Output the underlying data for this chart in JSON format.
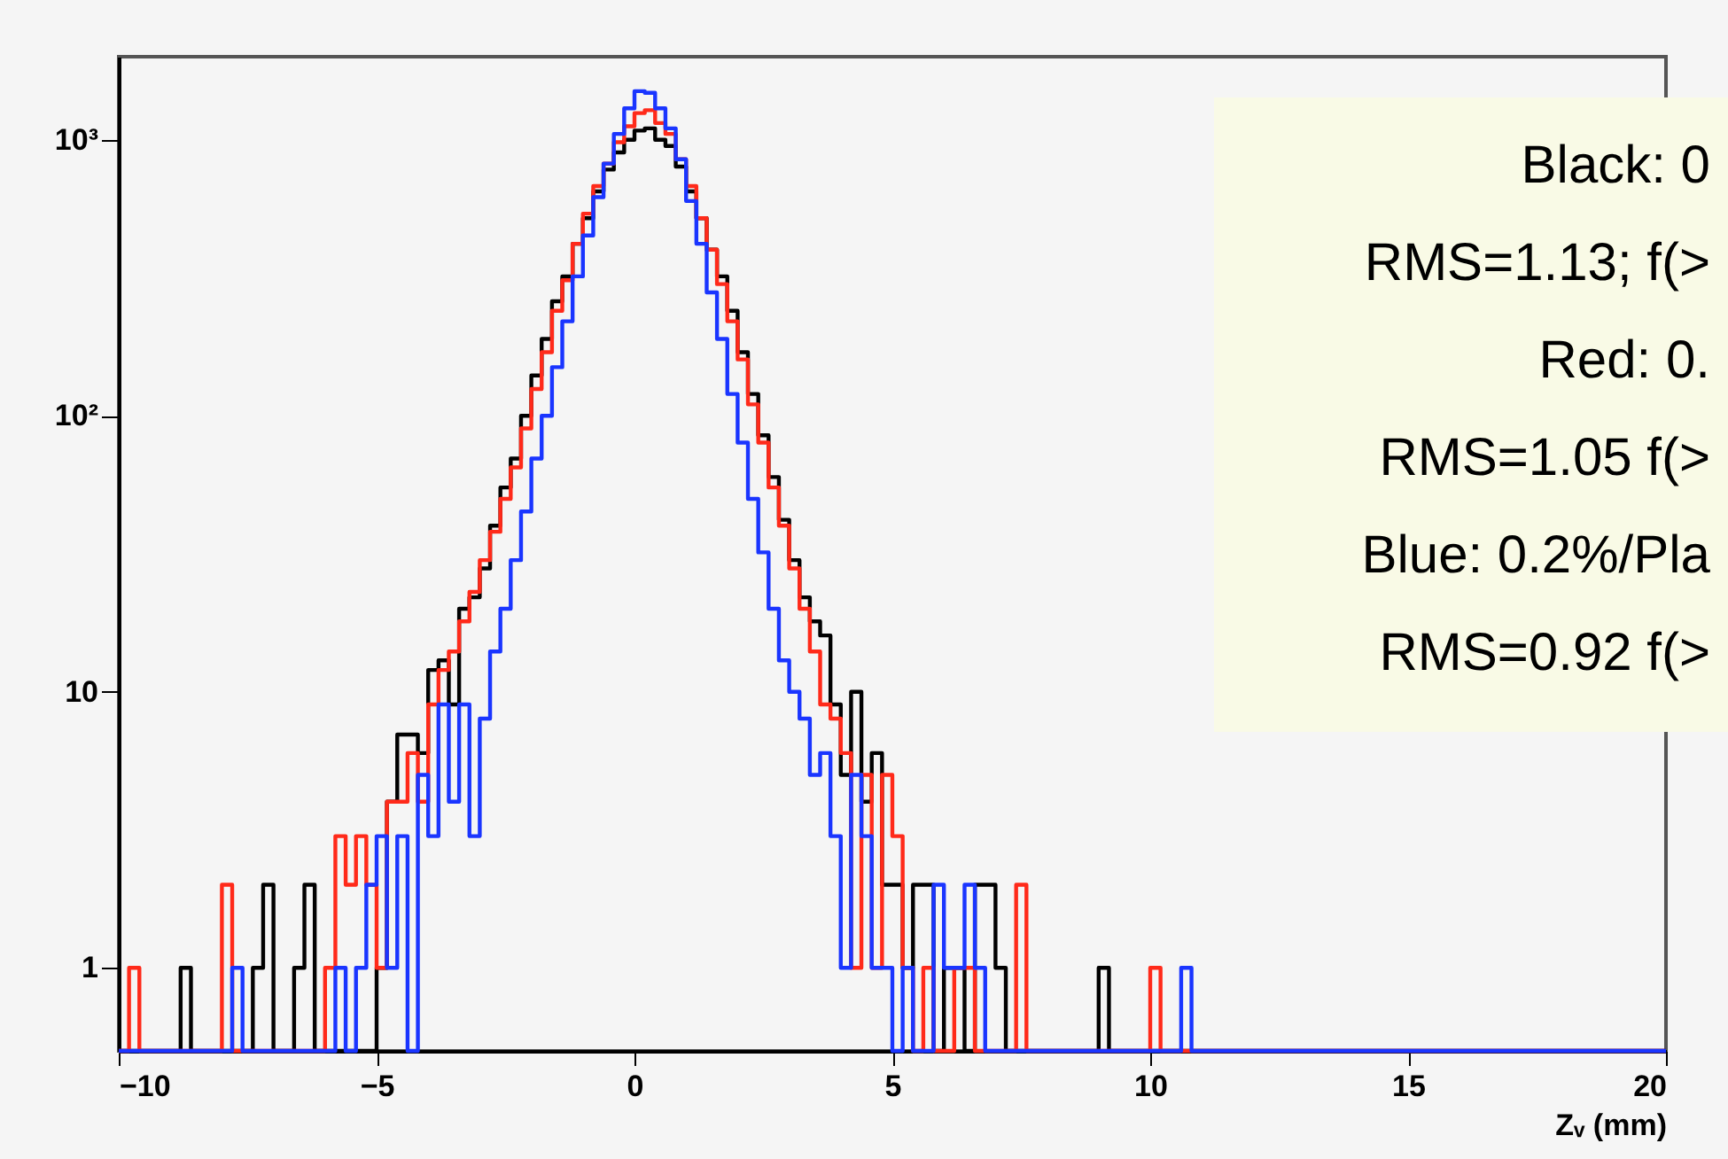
{
  "chart_data": {
    "type": "histogram",
    "bins": [
      -10,
      -9.8,
      -9.6,
      -9.4,
      -9.2,
      -9,
      -8.8,
      -8.6,
      -8.4,
      -8.2,
      -8,
      -7.8,
      -7.6,
      -7.4,
      -7.2,
      -7,
      -6.8,
      -6.6,
      -6.4,
      -6.2,
      -6,
      -5.8,
      -5.6,
      -5.4,
      -5.2,
      -5,
      -4.8,
      -4.6,
      -4.4,
      -4.2,
      -4,
      -3.8,
      -3.6,
      -3.4,
      -3.2,
      -3,
      -2.8,
      -2.6,
      -2.4,
      -2.2,
      -2,
      -1.8,
      -1.6,
      -1.4,
      -1.2,
      -1,
      -0.8,
      -0.6,
      -0.4,
      -0.2,
      0,
      0.2,
      0.4,
      0.6,
      0.8,
      1,
      1.2,
      1.4,
      1.6,
      1.8,
      2,
      2.2,
      2.4,
      2.6,
      2.8,
      3,
      3.2,
      3.4,
      3.6,
      3.8,
      4,
      4.2,
      4.4,
      4.6,
      4.8,
      5,
      5.2,
      5.4,
      5.6,
      5.8,
      6,
      6.2,
      6.4,
      6.6,
      6.8,
      7,
      7.2,
      7.4,
      7.6,
      7.8,
      8,
      8.2,
      8.4,
      8.6,
      8.8,
      9,
      9.2,
      9.4,
      9.6,
      9.8,
      10,
      10.2,
      10.4,
      10.6,
      10.8,
      11,
      11.2,
      11.4,
      11.6,
      11.8,
      12,
      12.2,
      12.4,
      12.6,
      12.8,
      13,
      13.2,
      13.4,
      13.6,
      13.8,
      14,
      14.2,
      14.4,
      14.6,
      14.8,
      15,
      15.2,
      15.4,
      15.6,
      15.8,
      16,
      16.2,
      16.4,
      16.6,
      16.8,
      17,
      17.2,
      17.4,
      17.6,
      17.8,
      18,
      18.2,
      18.4,
      18.6,
      18.8,
      19,
      19.2,
      19.4,
      19.6,
      19.8,
      20
    ],
    "series": [
      {
        "color": "#000000",
        "values": [
          null,
          null,
          null,
          null,
          null,
          null,
          1,
          null,
          null,
          null,
          null,
          null,
          null,
          1,
          2,
          null,
          null,
          1,
          2,
          null,
          null,
          null,
          null,
          null,
          null,
          1,
          4,
          7,
          7,
          6,
          12,
          13,
          9,
          20,
          22,
          28,
          40,
          55,
          70,
          100,
          140,
          190,
          260,
          320,
          420,
          520,
          650,
          780,
          900,
          1000,
          1080,
          1100,
          1000,
          950,
          800,
          650,
          520,
          400,
          320,
          240,
          170,
          120,
          85,
          60,
          42,
          30,
          22,
          18,
          16,
          9,
          5,
          10,
          4,
          6,
          2,
          2,
          1,
          2,
          2,
          null,
          1,
          1,
          null,
          2,
          2,
          1,
          null,
          null,
          null,
          null,
          null,
          null,
          null,
          null,
          null,
          1,
          null,
          null,
          null,
          null,
          null,
          null,
          null,
          null,
          null,
          null,
          null,
          null,
          null,
          null,
          null,
          null,
          null,
          null,
          null,
          null,
          null,
          null,
          null,
          null,
          null,
          null,
          null,
          null,
          null,
          null,
          null,
          null,
          null,
          null,
          null,
          null,
          null,
          null,
          null,
          null,
          null,
          null,
          null,
          null,
          null,
          null,
          null,
          null,
          null,
          null,
          null,
          null,
          null,
          null
        ]
      },
      {
        "color": "#ff2a1a",
        "values": [
          null,
          1,
          null,
          null,
          null,
          null,
          null,
          null,
          null,
          null,
          2,
          null,
          null,
          null,
          null,
          null,
          null,
          null,
          null,
          null,
          1,
          3,
          2,
          3,
          2,
          1,
          4,
          4,
          6,
          4,
          9,
          12,
          14,
          18,
          23,
          30,
          38,
          50,
          65,
          90,
          125,
          170,
          240,
          310,
          420,
          540,
          680,
          820,
          980,
          1120,
          1250,
          1280,
          1150,
          1050,
          850,
          680,
          520,
          400,
          300,
          220,
          160,
          110,
          80,
          55,
          40,
          28,
          20,
          14,
          9,
          8,
          6,
          1,
          5,
          1,
          5,
          3,
          1,
          null,
          1,
          null,
          null,
          1,
          1,
          null,
          null,
          null,
          null,
          2,
          null,
          null,
          null,
          null,
          null,
          null,
          null,
          null,
          null,
          null,
          null,
          null,
          1,
          null,
          null,
          null,
          null,
          null,
          null,
          null,
          null,
          null,
          null,
          null,
          null,
          null,
          null,
          null,
          null,
          null,
          null,
          null,
          null,
          null,
          null,
          null,
          null,
          null,
          null,
          null,
          null,
          null,
          null,
          null,
          null,
          null,
          null,
          null,
          null,
          null,
          null,
          null,
          null,
          null,
          null,
          null,
          null,
          null,
          null,
          null,
          null,
          null
        ]
      },
      {
        "color": "#1a35ff",
        "values": [
          null,
          null,
          null,
          null,
          null,
          null,
          null,
          null,
          null,
          null,
          null,
          1,
          null,
          null,
          null,
          null,
          null,
          null,
          null,
          null,
          null,
          1,
          null,
          1,
          2,
          3,
          1,
          3,
          null,
          5,
          3,
          9,
          4,
          9,
          3,
          8,
          14,
          20,
          30,
          45,
          70,
          100,
          150,
          220,
          320,
          450,
          620,
          820,
          1050,
          1300,
          1500,
          1480,
          1300,
          1100,
          850,
          600,
          420,
          280,
          190,
          120,
          80,
          50,
          32,
          20,
          13,
          10,
          8,
          5,
          6,
          3,
          1,
          5,
          3,
          1,
          1,
          null,
          1,
          null,
          null,
          2,
          1,
          1,
          2,
          1,
          null,
          null,
          null,
          null,
          null,
          null,
          null,
          null,
          null,
          null,
          null,
          null,
          null,
          null,
          null,
          null,
          null,
          null,
          null,
          1,
          null,
          null,
          null,
          null,
          null,
          null,
          null,
          null,
          null,
          null,
          null,
          null,
          null,
          null,
          null,
          null,
          null,
          null,
          null,
          null,
          null,
          null,
          null,
          null,
          null,
          null,
          null,
          null,
          null,
          null,
          null,
          null,
          null,
          null,
          null,
          null,
          null,
          null,
          null,
          null,
          null,
          null,
          null,
          null,
          null,
          null
        ]
      }
    ],
    "xlabel": "Zᵥ (mm)",
    "xlim": [
      -10,
      20
    ],
    "xticks": [
      -10,
      -5,
      0,
      5,
      10,
      15,
      20
    ],
    "ylim": [
      0.5,
      2000
    ],
    "yticks": [
      1,
      10,
      {
        "value": 100,
        "label": "10²"
      },
      {
        "value": 1000,
        "label": "10³"
      }
    ],
    "log": "y",
    "grid": false,
    "annotations": [
      "Black:  0",
      "RMS=1.13; f(>",
      "Red:  0.",
      "RMS=1.05 f(>",
      "Blue:  0.2%/Pla",
      "RMS=0.92 f(>"
    ]
  }
}
